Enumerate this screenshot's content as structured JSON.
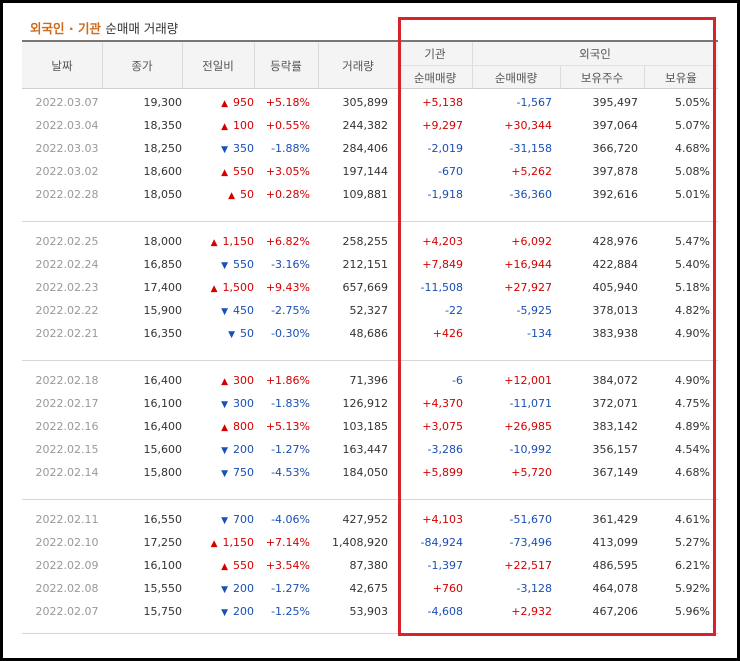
{
  "title": {
    "accent": "외국인 · 기관",
    "rest": "순매매 거래량"
  },
  "headers": {
    "date": "날짜",
    "close": "종가",
    "change": "전일비",
    "rate": "등락률",
    "volume": "거래량",
    "institution": "기관",
    "foreigner": "외국인",
    "inst_net": "순매매량",
    "frn_net": "순매매량",
    "holdings": "보유주수",
    "hold_ratio": "보유율"
  },
  "colors": {
    "up": "#d40000",
    "down": "#1a4fb3",
    "highlight_box": "#d8232a",
    "title_accent": "#d06a1a"
  },
  "groups": [
    {
      "rows": [
        {
          "date": "2022.03.07",
          "close": "19,300",
          "dir": "up",
          "change": "950",
          "rate": "+5.18%",
          "volume": "305,899",
          "inst": "+5,138",
          "frn": "-1,567",
          "holdings": "395,497",
          "ratio": "5.05%"
        },
        {
          "date": "2022.03.04",
          "close": "18,350",
          "dir": "up",
          "change": "100",
          "rate": "+0.55%",
          "volume": "244,382",
          "inst": "+9,297",
          "frn": "+30,344",
          "holdings": "397,064",
          "ratio": "5.07%"
        },
        {
          "date": "2022.03.03",
          "close": "18,250",
          "dir": "down",
          "change": "350",
          "rate": "-1.88%",
          "volume": "284,406",
          "inst": "-2,019",
          "frn": "-31,158",
          "holdings": "366,720",
          "ratio": "4.68%"
        },
        {
          "date": "2022.03.02",
          "close": "18,600",
          "dir": "up",
          "change": "550",
          "rate": "+3.05%",
          "volume": "197,144",
          "inst": "-670",
          "frn": "+5,262",
          "holdings": "397,878",
          "ratio": "5.08%"
        },
        {
          "date": "2022.02.28",
          "close": "18,050",
          "dir": "up",
          "change": "50",
          "rate": "+0.28%",
          "volume": "109,881",
          "inst": "-1,918",
          "frn": "-36,360",
          "holdings": "392,616",
          "ratio": "5.01%"
        }
      ]
    },
    {
      "rows": [
        {
          "date": "2022.02.25",
          "close": "18,000",
          "dir": "up",
          "change": "1,150",
          "rate": "+6.82%",
          "volume": "258,255",
          "inst": "+4,203",
          "frn": "+6,092",
          "holdings": "428,976",
          "ratio": "5.47%"
        },
        {
          "date": "2022.02.24",
          "close": "16,850",
          "dir": "down",
          "change": "550",
          "rate": "-3.16%",
          "volume": "212,151",
          "inst": "+7,849",
          "frn": "+16,944",
          "holdings": "422,884",
          "ratio": "5.40%"
        },
        {
          "date": "2022.02.23",
          "close": "17,400",
          "dir": "up",
          "change": "1,500",
          "rate": "+9.43%",
          "volume": "657,669",
          "inst": "-11,508",
          "frn": "+27,927",
          "holdings": "405,940",
          "ratio": "5.18%"
        },
        {
          "date": "2022.02.22",
          "close": "15,900",
          "dir": "down",
          "change": "450",
          "rate": "-2.75%",
          "volume": "52,327",
          "inst": "-22",
          "frn": "-5,925",
          "holdings": "378,013",
          "ratio": "4.82%"
        },
        {
          "date": "2022.02.21",
          "close": "16,350",
          "dir": "down",
          "change": "50",
          "rate": "-0.30%",
          "volume": "48,686",
          "inst": "+426",
          "frn": "-134",
          "holdings": "383,938",
          "ratio": "4.90%"
        }
      ]
    },
    {
      "rows": [
        {
          "date": "2022.02.18",
          "close": "16,400",
          "dir": "up",
          "change": "300",
          "rate": "+1.86%",
          "volume": "71,396",
          "inst": "-6",
          "frn": "+12,001",
          "holdings": "384,072",
          "ratio": "4.90%"
        },
        {
          "date": "2022.02.17",
          "close": "16,100",
          "dir": "down",
          "change": "300",
          "rate": "-1.83%",
          "volume": "126,912",
          "inst": "+4,370",
          "frn": "-11,071",
          "holdings": "372,071",
          "ratio": "4.75%"
        },
        {
          "date": "2022.02.16",
          "close": "16,400",
          "dir": "up",
          "change": "800",
          "rate": "+5.13%",
          "volume": "103,185",
          "inst": "+3,075",
          "frn": "+26,985",
          "holdings": "383,142",
          "ratio": "4.89%"
        },
        {
          "date": "2022.02.15",
          "close": "15,600",
          "dir": "down",
          "change": "200",
          "rate": "-1.27%",
          "volume": "163,447",
          "inst": "-3,286",
          "frn": "-10,992",
          "holdings": "356,157",
          "ratio": "4.54%"
        },
        {
          "date": "2022.02.14",
          "close": "15,800",
          "dir": "down",
          "change": "750",
          "rate": "-4.53%",
          "volume": "184,050",
          "inst": "+5,899",
          "frn": "+5,720",
          "holdings": "367,149",
          "ratio": "4.68%"
        }
      ]
    },
    {
      "rows": [
        {
          "date": "2022.02.11",
          "close": "16,550",
          "dir": "down",
          "change": "700",
          "rate": "-4.06%",
          "volume": "427,952",
          "inst": "+4,103",
          "frn": "-51,670",
          "holdings": "361,429",
          "ratio": "4.61%"
        },
        {
          "date": "2022.02.10",
          "close": "17,250",
          "dir": "up",
          "change": "1,150",
          "rate": "+7.14%",
          "volume": "1,408,920",
          "inst": "-84,924",
          "frn": "-73,496",
          "holdings": "413,099",
          "ratio": "5.27%"
        },
        {
          "date": "2022.02.09",
          "close": "16,100",
          "dir": "up",
          "change": "550",
          "rate": "+3.54%",
          "volume": "87,380",
          "inst": "-1,397",
          "frn": "+22,517",
          "holdings": "486,595",
          "ratio": "6.21%"
        },
        {
          "date": "2022.02.08",
          "close": "15,550",
          "dir": "down",
          "change": "200",
          "rate": "-1.27%",
          "volume": "42,675",
          "inst": "+760",
          "frn": "-3,128",
          "holdings": "464,078",
          "ratio": "5.92%"
        },
        {
          "date": "2022.02.07",
          "close": "15,750",
          "dir": "down",
          "change": "200",
          "rate": "-1.25%",
          "volume": "53,903",
          "inst": "-4,608",
          "frn": "+2,932",
          "holdings": "467,206",
          "ratio": "5.96%"
        }
      ]
    }
  ]
}
